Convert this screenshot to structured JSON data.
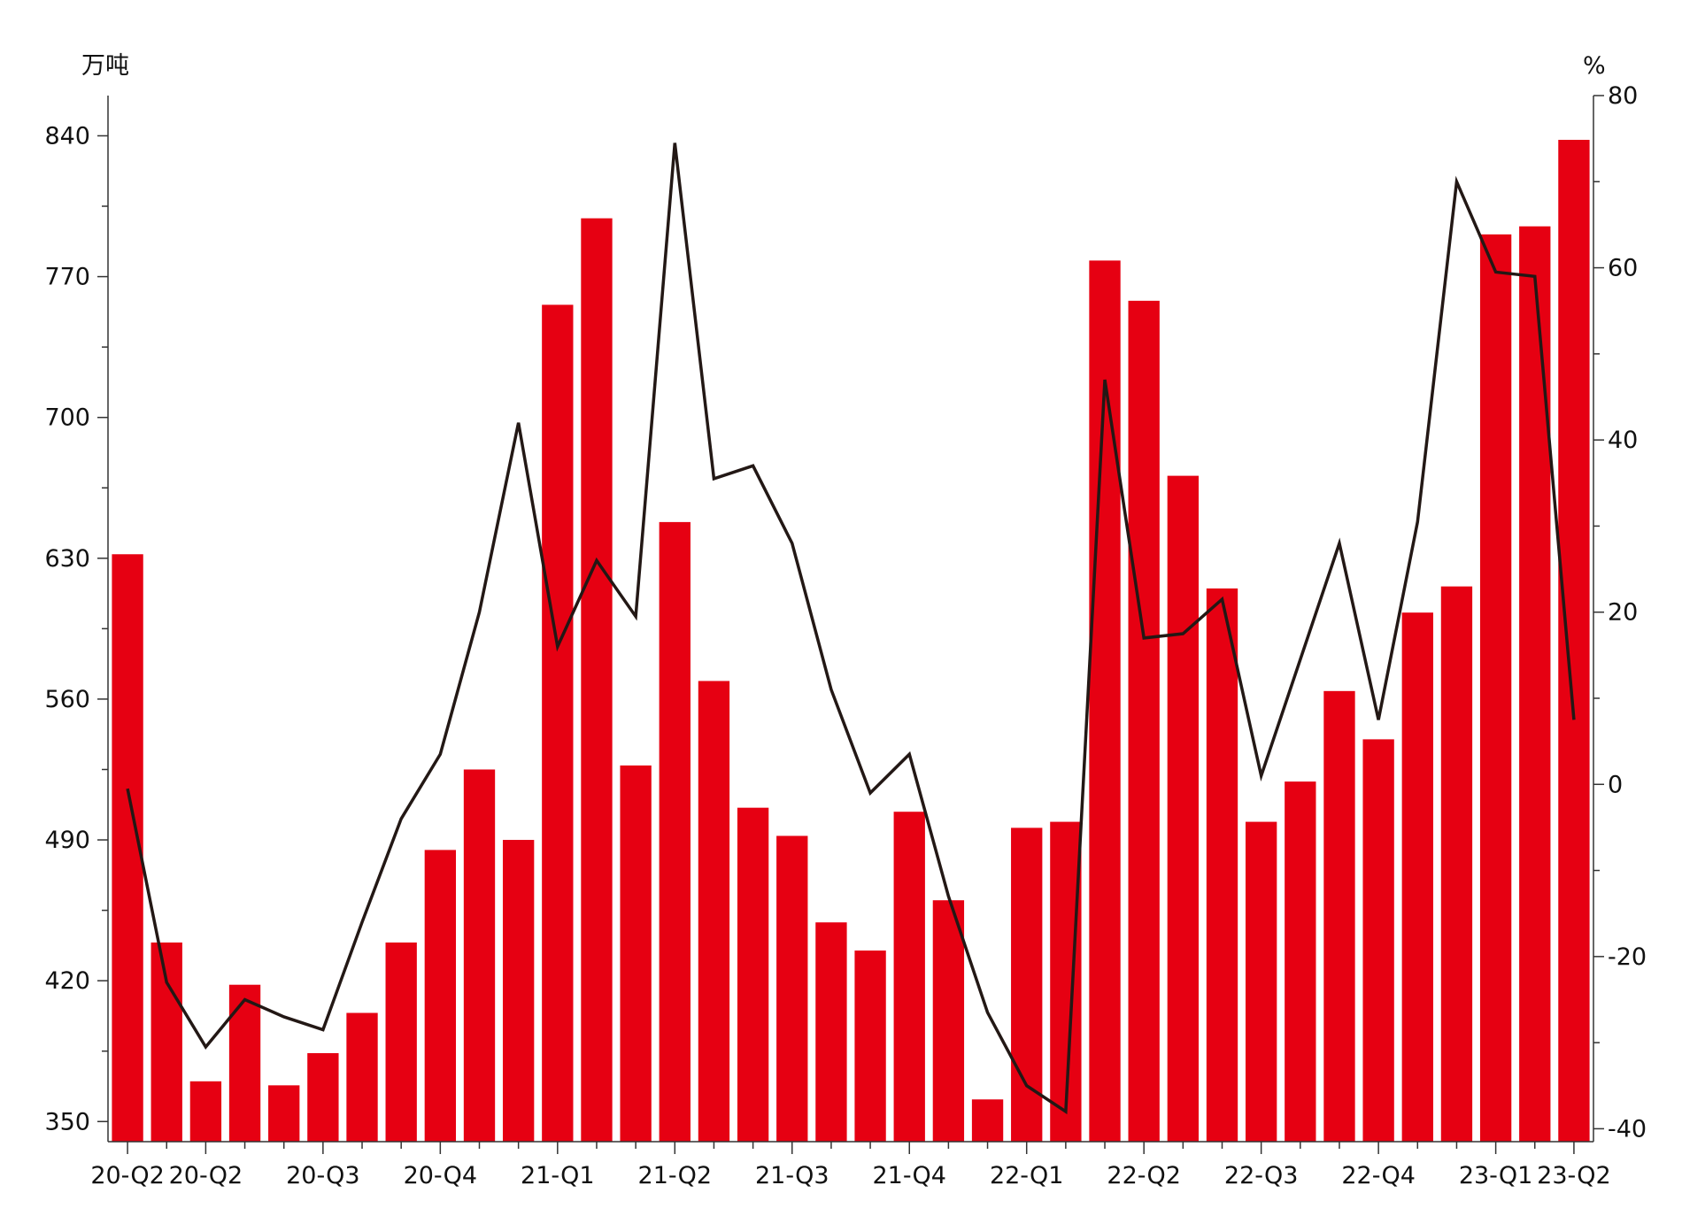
{
  "chart_data": {
    "type": "bar",
    "title": "",
    "xlabel": "",
    "ylabel": "万吨",
    "y2label": "%",
    "ylim": [
      340,
      860
    ],
    "y2lim": [
      -41.5,
      80
    ],
    "yticks": [
      350,
      420,
      490,
      560,
      630,
      700,
      770,
      840
    ],
    "y2ticks": [
      -40,
      -20,
      0,
      20,
      40,
      60,
      80
    ],
    "tick_labels": [
      "20-Q2",
      "20-Q2",
      "20-Q3",
      "20-Q4",
      "21-Q1",
      "21-Q2",
      "21-Q3",
      "21-Q4",
      "22-Q1",
      "22-Q2",
      "22-Q3",
      "22-Q4",
      "23-Q1",
      "23-Q2"
    ],
    "tick_positions": [
      0,
      2,
      5,
      8,
      11,
      14,
      17,
      20,
      23,
      26,
      29,
      32,
      35,
      37
    ],
    "grid": false,
    "legend": "none",
    "bar_color": "#e60012",
    "line_color": "#231815",
    "series": [
      {
        "type": "bar",
        "axis": "left",
        "values": [
          632,
          439,
          370,
          418,
          368,
          384,
          404,
          439,
          485,
          525,
          490,
          756,
          799,
          527,
          648,
          569,
          506,
          492,
          449,
          435,
          504,
          460,
          361,
          496,
          499,
          778,
          758,
          671,
          615,
          499,
          519,
          564,
          540,
          603,
          616,
          791,
          795,
          838
        ]
      },
      {
        "type": "line",
        "axis": "right",
        "values": [
          -0.5,
          -23,
          -30.5,
          -25,
          -27,
          -28.5,
          -16,
          -4,
          3.5,
          20,
          42,
          16,
          26,
          19.5,
          74.5,
          35.5,
          37,
          28,
          11,
          -1,
          3.5,
          -13,
          -26.5,
          -35,
          -38,
          47,
          17,
          17.5,
          21.5,
          1,
          14.5,
          28,
          7.5,
          30.5,
          70,
          59.5,
          59,
          7.5
        ]
      }
    ]
  }
}
